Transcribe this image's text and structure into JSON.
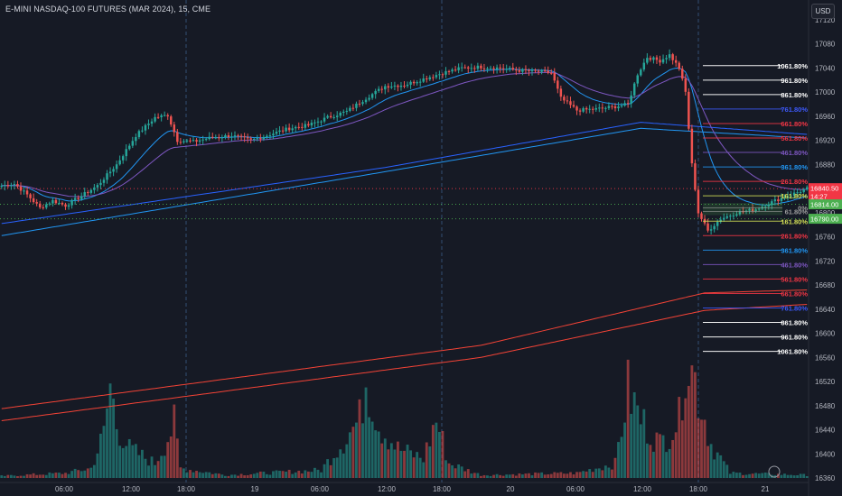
{
  "header": {
    "title": "E-MINI NASDAQ-100 FUTURES (MAR 2024), 15, CME",
    "currency": "USD"
  },
  "colors": {
    "background": "#161a25",
    "up": "#26a69a",
    "down": "#ef5350",
    "grid_session": "#3b5b86"
  },
  "chart_data": {
    "type": "candlestick",
    "ylim": [
      16360,
      17120
    ],
    "y_ticks": [
      17120,
      17080,
      17040,
      17000,
      16960,
      16920,
      16880,
      16840,
      16800,
      16760,
      16720,
      16680,
      16640,
      16600,
      16560,
      16520,
      16480,
      16440,
      16400,
      16360
    ],
    "x_ticks": [
      "06:00",
      "12:00",
      "18:00",
      "19",
      "06:00",
      "12:00",
      "18:00",
      "20",
      "06:00",
      "12:00",
      "18:00",
      "21"
    ],
    "session_breaks_x": [
      "18:00",
      "18:00",
      "18:00"
    ],
    "price_keypoints": [
      {
        "t": 0,
        "p": 16845
      },
      {
        "t": 4,
        "p": 16848
      },
      {
        "t": 8,
        "p": 16830
      },
      {
        "t": 12,
        "p": 16808
      },
      {
        "t": 16,
        "p": 16820
      },
      {
        "t": 20,
        "p": 16812
      },
      {
        "t": 25,
        "p": 16828
      },
      {
        "t": 30,
        "p": 16845
      },
      {
        "t": 36,
        "p": 16880
      },
      {
        "t": 42,
        "p": 16928
      },
      {
        "t": 48,
        "p": 16958
      },
      {
        "t": 52,
        "p": 16962
      },
      {
        "t": 55,
        "p": 16920
      },
      {
        "t": 60,
        "p": 16918
      },
      {
        "t": 66,
        "p": 16925
      },
      {
        "t": 72,
        "p": 16928
      },
      {
        "t": 78,
        "p": 16920
      },
      {
        "t": 84,
        "p": 16930
      },
      {
        "t": 90,
        "p": 16940
      },
      {
        "t": 96,
        "p": 16945
      },
      {
        "t": 102,
        "p": 16958
      },
      {
        "t": 108,
        "p": 16968
      },
      {
        "t": 114,
        "p": 16990
      },
      {
        "t": 120,
        "p": 17010
      },
      {
        "t": 126,
        "p": 17012
      },
      {
        "t": 132,
        "p": 17022
      },
      {
        "t": 138,
        "p": 17032
      },
      {
        "t": 144,
        "p": 17040
      },
      {
        "t": 150,
        "p": 17042
      },
      {
        "t": 156,
        "p": 17040
      },
      {
        "t": 162,
        "p": 17036
      },
      {
        "t": 168,
        "p": 17034
      },
      {
        "t": 172,
        "p": 17032
      },
      {
        "t": 175,
        "p": 16990
      },
      {
        "t": 180,
        "p": 16970
      },
      {
        "t": 186,
        "p": 16972
      },
      {
        "t": 192,
        "p": 16976
      },
      {
        "t": 196,
        "p": 16980
      },
      {
        "t": 199,
        "p": 17030
      },
      {
        "t": 202,
        "p": 17058
      },
      {
        "t": 206,
        "p": 17052
      },
      {
        "t": 209,
        "p": 17062
      },
      {
        "t": 212,
        "p": 17040
      },
      {
        "t": 214,
        "p": 17000
      },
      {
        "t": 216,
        "p": 16880
      },
      {
        "t": 218,
        "p": 16800
      },
      {
        "t": 221,
        "p": 16770
      },
      {
        "t": 225,
        "p": 16790
      },
      {
        "t": 230,
        "p": 16800
      },
      {
        "t": 236,
        "p": 16806
      },
      {
        "t": 242,
        "p": 16820
      },
      {
        "t": 248,
        "p": 16832
      },
      {
        "t": 252,
        "p": 16840
      }
    ],
    "volume_profile": [
      {
        "t": 0,
        "v": 0.02
      },
      {
        "t": 20,
        "v": 0.05
      },
      {
        "t": 28,
        "v": 0.1
      },
      {
        "t": 32,
        "v": 0.45
      },
      {
        "t": 34,
        "v": 0.95
      },
      {
        "t": 36,
        "v": 0.55
      },
      {
        "t": 40,
        "v": 0.3
      },
      {
        "t": 48,
        "v": 0.15
      },
      {
        "t": 54,
        "v": 0.55
      },
      {
        "t": 56,
        "v": 0.1
      },
      {
        "t": 70,
        "v": 0.03
      },
      {
        "t": 100,
        "v": 0.08
      },
      {
        "t": 112,
        "v": 0.6
      },
      {
        "t": 114,
        "v": 1.05
      },
      {
        "t": 118,
        "v": 0.55
      },
      {
        "t": 124,
        "v": 0.3
      },
      {
        "t": 132,
        "v": 0.2
      },
      {
        "t": 136,
        "v": 0.6
      },
      {
        "t": 140,
        "v": 0.15
      },
      {
        "t": 150,
        "v": 0.03
      },
      {
        "t": 180,
        "v": 0.05
      },
      {
        "t": 192,
        "v": 0.15
      },
      {
        "t": 196,
        "v": 0.9
      },
      {
        "t": 200,
        "v": 0.6
      },
      {
        "t": 206,
        "v": 0.35
      },
      {
        "t": 212,
        "v": 0.6
      },
      {
        "t": 214,
        "v": 1.3
      },
      {
        "t": 217,
        "v": 1.0
      },
      {
        "t": 222,
        "v": 0.35
      },
      {
        "t": 228,
        "v": 0.05
      },
      {
        "t": 252,
        "v": 0.03
      }
    ],
    "sma_lines": [
      {
        "name": "",
        "color": "#2962ff",
        "points": [
          {
            "t": 0,
            "p": 16782
          },
          {
            "t": 120,
            "p": 16875
          },
          {
            "t": 200,
            "p": 16950
          },
          {
            "t": 252,
            "p": 16930
          }
        ]
      },
      {
        "name": "",
        "color": "#2196f3",
        "points": [
          {
            "t": 0,
            "p": 16762
          },
          {
            "t": 120,
            "p": 16868
          },
          {
            "t": 200,
            "p": 16940
          },
          {
            "t": 252,
            "p": 16924
          }
        ]
      },
      {
        "name": "",
        "color": "#f44336",
        "points": [
          {
            "t": 0,
            "p": 16475
          },
          {
            "t": 150,
            "p": 16580
          },
          {
            "t": 220,
            "p": 16667
          },
          {
            "t": 252,
            "p": 16672
          }
        ]
      },
      {
        "name": "",
        "color": "#f44336",
        "points": [
          {
            "t": 0,
            "p": 16455
          },
          {
            "t": 150,
            "p": 16560
          },
          {
            "t": 220,
            "p": 16638
          },
          {
            "t": 252,
            "p": 16648
          }
        ]
      }
    ],
    "fib_levels_upper": [
      {
        "label": "1061.80%",
        "price": 17044,
        "color": "#ffffff"
      },
      {
        "label": "961.80%",
        "price": 17020,
        "color": "#ffffff"
      },
      {
        "label": "861.80%",
        "price": 16996,
        "color": "#ffffff"
      },
      {
        "label": "761.80%",
        "price": 16972,
        "color": "#3d5afe"
      },
      {
        "label": "661.80%",
        "price": 16948,
        "color": "#f23645"
      },
      {
        "label": "561.80%",
        "price": 16924,
        "color": "#f23645"
      },
      {
        "label": "461.80%",
        "price": 16900,
        "color": "#7e57c2"
      },
      {
        "label": "361.80%",
        "price": 16876,
        "color": "#2196f3"
      },
      {
        "label": "261.80%",
        "price": 16852,
        "color": "#f23645"
      },
      {
        "label": "161.80%",
        "price": 16828,
        "color": "#d4e157"
      }
    ],
    "fib_levels_lower": [
      {
        "label": "161.80%",
        "price": 16786,
        "color": "#d4e157"
      },
      {
        "label": "261.80%",
        "price": 16762,
        "color": "#f23645"
      },
      {
        "label": "361.80%",
        "price": 16738,
        "color": "#2196f3"
      },
      {
        "label": "461.80%",
        "price": 16714,
        "color": "#7e57c2"
      },
      {
        "label": "561.80%",
        "price": 16690,
        "color": "#f23645"
      },
      {
        "label": "661.80%",
        "price": 16666,
        "color": "#f23645"
      },
      {
        "label": "761.80%",
        "price": 16642,
        "color": "#3d5afe"
      },
      {
        "label": "861.80%",
        "price": 16618,
        "color": "#ffffff"
      },
      {
        "label": "961.80%",
        "price": 16594,
        "color": "#ffffff"
      },
      {
        "label": "1061.80%",
        "price": 16570,
        "color": "#ffffff"
      }
    ],
    "fib_mid_labels": [
      "0%",
      "61.80%"
    ],
    "price_tags": [
      {
        "text": "16840.50",
        "sub": "14:27",
        "price": 16840,
        "color": "#f23645"
      },
      {
        "text": "16814.00",
        "price": 16814,
        "color": "#4caf50"
      },
      {
        "text": "16790.00",
        "price": 16790,
        "color": "#4caf50"
      }
    ],
    "horizontal_lines": [
      {
        "price": 16840,
        "color": "#f23645",
        "style": "dotted"
      },
      {
        "price": 16814,
        "color": "#4caf50",
        "style": "dotted"
      },
      {
        "price": 16790,
        "color": "#4caf50",
        "style": "dotted"
      }
    ]
  }
}
